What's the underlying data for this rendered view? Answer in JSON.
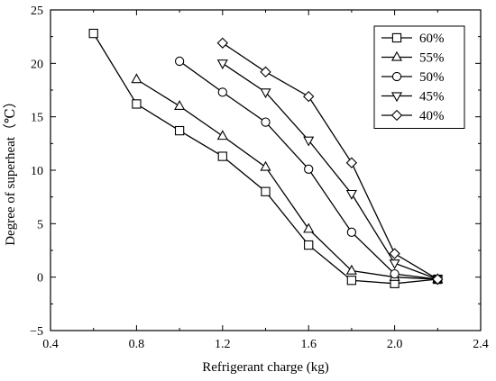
{
  "chart_data": {
    "type": "line",
    "xlabel": "Refrigerant charge (kg)",
    "ylabel": "Degree of superheat（℃）",
    "xlim": [
      0.4,
      2.4
    ],
    "ylim": [
      -5,
      25
    ],
    "xticks": [
      "0.4",
      "0.8",
      "1.2",
      "1.6",
      "2.0",
      "2.4"
    ],
    "yticks": [
      "25",
      "20",
      "15",
      "10",
      "5",
      "0",
      "−5"
    ],
    "grid": false,
    "legend_position": "top-right",
    "series": [
      {
        "name": "60%",
        "marker": "square",
        "x": [
          0.6,
          0.8,
          1.0,
          1.2,
          1.4,
          1.6,
          1.8,
          2.0,
          2.2
        ],
        "y": [
          22.8,
          16.2,
          13.7,
          11.3,
          8.0,
          3.0,
          -0.3,
          -0.6,
          -0.2
        ]
      },
      {
        "name": "55%",
        "marker": "triangle-up",
        "x": [
          0.8,
          1.0,
          1.2,
          1.4,
          1.6,
          1.8,
          2.0,
          2.2
        ],
        "y": [
          18.5,
          16.0,
          13.2,
          10.3,
          4.5,
          0.6,
          0.0,
          -0.2
        ]
      },
      {
        "name": "50%",
        "marker": "circle",
        "x": [
          1.0,
          1.2,
          1.4,
          1.6,
          1.8,
          2.0,
          2.2
        ],
        "y": [
          20.2,
          17.3,
          14.5,
          10.1,
          4.2,
          0.3,
          -0.2
        ]
      },
      {
        "name": "45%",
        "marker": "triangle-down",
        "x": [
          1.2,
          1.4,
          1.6,
          1.8,
          2.0,
          2.2
        ],
        "y": [
          20.0,
          17.3,
          12.8,
          7.8,
          1.3,
          -0.2
        ]
      },
      {
        "name": "40%",
        "marker": "diamond",
        "x": [
          1.2,
          1.4,
          1.6,
          1.8,
          2.0,
          2.2
        ],
        "y": [
          21.9,
          19.2,
          16.9,
          10.7,
          2.2,
          -0.2
        ]
      }
    ]
  }
}
